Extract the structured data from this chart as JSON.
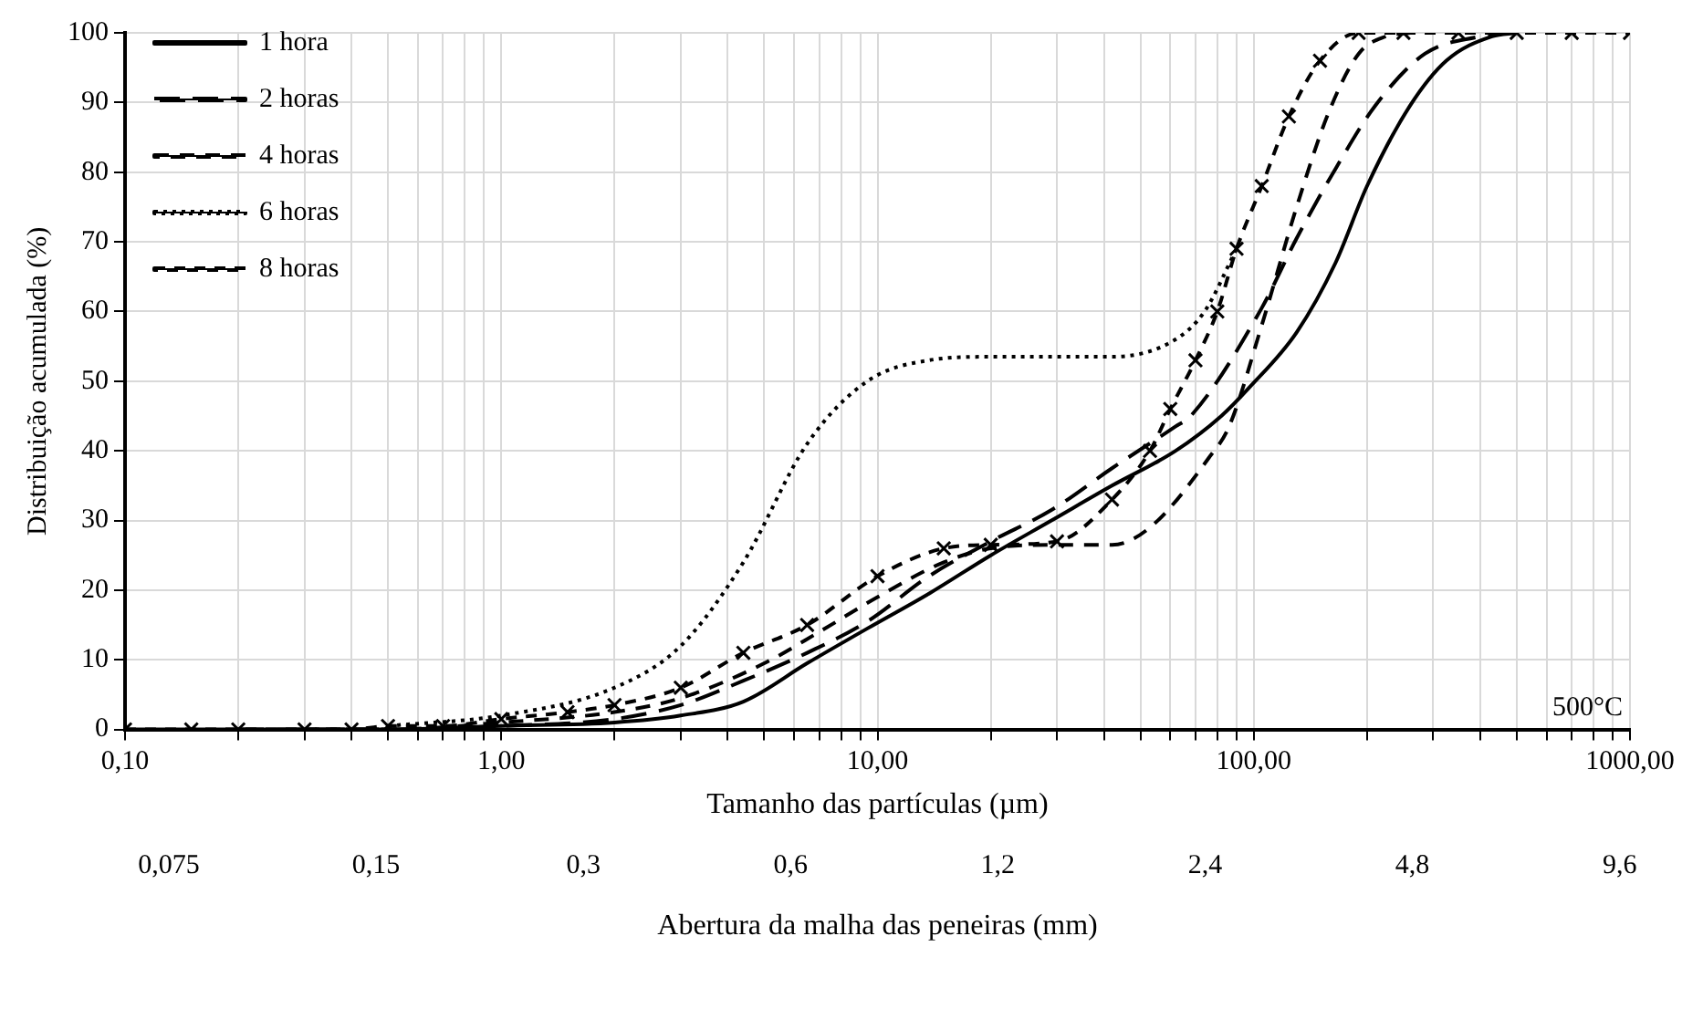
{
  "chart_data": {
    "type": "line",
    "xlabel": "Tamanho das partículas (µm)",
    "ylabel": "Distribuição acumulada (%)",
    "x2label": "Abertura da malha das peneiras (mm)",
    "annotations": [
      "500°C",
      "0,075",
      "0,15",
      "0,3",
      "0,6",
      "1,2",
      "2,4",
      "4,8",
      "9,6"
    ],
    "log": "x",
    "grid": true,
    "legend": "top left",
    "xlim": [
      0.1,
      1000
    ],
    "ylim": [
      0,
      100
    ],
    "yticks": [
      0,
      10,
      20,
      30,
      40,
      50,
      60,
      70,
      80,
      90,
      100
    ],
    "xticks": [
      {
        "value": 0.1,
        "label": "0,10"
      },
      {
        "value": 0.2,
        "label": null
      },
      {
        "value": 0.3,
        "label": null
      },
      {
        "value": 0.4,
        "label": null
      },
      {
        "value": 0.5,
        "label": null
      },
      {
        "value": 0.6,
        "label": null
      },
      {
        "value": 0.7,
        "label": null
      },
      {
        "value": 0.8,
        "label": null
      },
      {
        "value": 0.9,
        "label": null
      },
      {
        "value": 1,
        "label": "1,00"
      },
      {
        "value": 2,
        "label": null
      },
      {
        "value": 3,
        "label": null
      },
      {
        "value": 4,
        "label": null
      },
      {
        "value": 5,
        "label": null
      },
      {
        "value": 6,
        "label": null
      },
      {
        "value": 7,
        "label": null
      },
      {
        "value": 8,
        "label": null
      },
      {
        "value": 9,
        "label": null
      },
      {
        "value": 10,
        "label": "10,00"
      },
      {
        "value": 20,
        "label": null
      },
      {
        "value": 30,
        "label": null
      },
      {
        "value": 40,
        "label": null
      },
      {
        "value": 50,
        "label": null
      },
      {
        "value": 60,
        "label": null
      },
      {
        "value": 70,
        "label": null
      },
      {
        "value": 80,
        "label": null
      },
      {
        "value": 90,
        "label": null
      },
      {
        "value": 100,
        "label": "100,00"
      },
      {
        "value": 200,
        "label": null
      },
      {
        "value": 300,
        "label": null
      },
      {
        "value": 400,
        "label": null
      },
      {
        "value": 500,
        "label": null
      },
      {
        "value": 600,
        "label": null
      },
      {
        "value": 700,
        "label": null
      },
      {
        "value": 800,
        "label": null
      },
      {
        "value": 900,
        "label": null
      },
      {
        "value": 1000,
        "label": "1000,00"
      }
    ],
    "series": [
      {
        "name": "1 hora",
        "color": "#000000",
        "line_style": "solid",
        "marker": "none",
        "x": [
          0.1,
          0.5,
          1,
          2,
          3,
          4.4,
          6.5,
          9.4,
          13.7,
          20,
          29,
          42,
          62,
          82,
          97,
          130,
          165,
          200,
          260,
          325,
          430,
          500
        ],
        "values": [
          0,
          0,
          0.5,
          1,
          2,
          4,
          9.5,
          14.5,
          19.5,
          25,
          30,
          35,
          40,
          45,
          49,
          57,
          67,
          78,
          89.5,
          96,
          99.5,
          100
        ]
      },
      {
        "name": "2 horas",
        "color": "#000000",
        "line_style": "dashed",
        "marker": "none",
        "x": [
          0.2,
          0.5,
          1,
          2,
          3,
          4.4,
          6.5,
          9.4,
          13.7,
          20,
          29,
          42,
          62,
          68,
          105,
          130,
          165,
          210,
          285,
          400,
          450
        ],
        "values": [
          0,
          0,
          0.5,
          1.5,
          3.5,
          7,
          11,
          15.5,
          22,
          27,
          31.5,
          37.5,
          43.5,
          45,
          60.5,
          70.5,
          80.5,
          89.5,
          97,
          99.5,
          100
        ]
      },
      {
        "name": "4 horas",
        "color": "#000000",
        "line_style": "dotted-dash",
        "marker": "none",
        "x": [
          0.3,
          0.5,
          1,
          2,
          3,
          5,
          7,
          10,
          15,
          20,
          30,
          42,
          53,
          76,
          86,
          105,
          130,
          158,
          190,
          225,
          260
        ],
        "values": [
          0,
          0,
          1,
          2.5,
          4.5,
          9.5,
          14,
          19,
          24,
          26,
          26.5,
          26.5,
          29,
          39,
          43.5,
          58,
          75,
          88.5,
          97,
          99.5,
          100
        ]
      },
      {
        "name": "6 horas",
        "color": "#000000",
        "line_style": "dotted",
        "marker": "none",
        "x": [
          0.5,
          1,
          2,
          3,
          4.4,
          6.5,
          9.4,
          13.7,
          20,
          30,
          42,
          62,
          74,
          90
        ],
        "values": [
          0.5,
          2,
          6,
          12,
          24,
          41,
          50,
          53,
          53.5,
          53.5,
          53.5,
          56,
          60,
          69
        ]
      },
      {
        "name": "8 horas",
        "color": "#000000",
        "line_style": "dashed-short",
        "marker": "cross",
        "x": [
          0.1,
          0.15,
          0.2,
          0.3,
          0.4,
          0.5,
          0.7,
          1,
          1.5,
          2,
          3,
          4.4,
          6.5,
          10,
          15,
          20,
          30,
          42,
          53,
          60,
          70,
          80,
          90,
          105,
          124,
          150,
          190,
          250,
          350,
          500,
          700,
          1000
        ],
        "values": [
          0,
          0,
          0,
          0,
          0,
          0.5,
          0.5,
          1.5,
          2.5,
          3.5,
          6,
          11,
          15,
          22,
          26,
          26.5,
          27,
          33,
          40,
          46,
          53,
          60,
          69,
          78,
          88,
          96,
          100,
          100,
          100,
          100,
          100,
          100
        ]
      }
    ]
  }
}
